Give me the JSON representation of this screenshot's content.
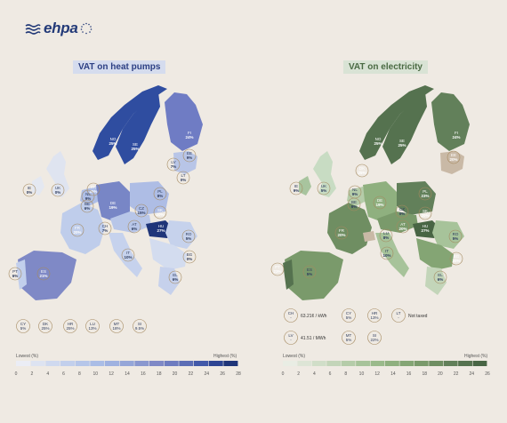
{
  "brand": {
    "name": "ehpa"
  },
  "heat_pumps": {
    "title": "VAT on heat pumps",
    "countries": [
      {
        "code": "NO",
        "value": "25%"
      },
      {
        "code": "SE",
        "value": "25%"
      },
      {
        "code": "FI",
        "value": "24%"
      },
      {
        "code": "EE",
        "value": "9%"
      },
      {
        "code": "LV",
        "value": "7%"
      },
      {
        "code": "LT",
        "value": "0%"
      },
      {
        "code": "DK",
        "value": "25%"
      },
      {
        "code": "IE",
        "value": "0%"
      },
      {
        "code": "UK",
        "value": "0%"
      },
      {
        "code": "NL",
        "value": "9%"
      },
      {
        "code": "BE",
        "value": "6%"
      },
      {
        "code": "DE",
        "value": "19%"
      },
      {
        "code": "PL",
        "value": "8%"
      },
      {
        "code": "CZ",
        "value": "15%"
      },
      {
        "code": "SK",
        "value": "20%"
      },
      {
        "code": "FR",
        "value": "20%"
      },
      {
        "code": "CH",
        "value": "7%"
      },
      {
        "code": "AT",
        "value": "6%"
      },
      {
        "code": "HU",
        "value": "27%"
      },
      {
        "code": "RO",
        "value": "5%"
      },
      {
        "code": "PT",
        "value": "6%"
      },
      {
        "code": "ES",
        "value": "21%"
      },
      {
        "code": "IT",
        "value": "10%"
      },
      {
        "code": "BG",
        "value": "0%"
      },
      {
        "code": "EL",
        "value": "6%"
      }
    ],
    "extras": [
      {
        "code": "CY",
        "value": "5%"
      },
      {
        "code": "DK",
        "value": "25%"
      },
      {
        "code": "HR",
        "value": "25%"
      },
      {
        "code": "LU",
        "value": "13%"
      },
      {
        "code": "MT",
        "value": "18%"
      },
      {
        "code": "SI",
        "value": "9.5%"
      }
    ],
    "legend_low": "Lowest (%)",
    "legend_high": "Highest (%)",
    "scale": [
      "0",
      "2",
      "4",
      "6",
      "8",
      "10",
      "12",
      "14",
      "16",
      "18",
      "20",
      "22",
      "24",
      "26",
      "28"
    ],
    "scale_colors": [
      "#ebedf5",
      "#dde3f1",
      "#cfd9ef",
      "#c2cfec",
      "#b6c6e9",
      "#aabde6",
      "#9fb2e0",
      "#95a6d8",
      "#8a98cf",
      "#7f89c6",
      "#6e7cc0",
      "#5b6db5",
      "#4259a9",
      "#2d4593",
      "#1f3579"
    ]
  },
  "electricity": {
    "title": "VAT on electricity",
    "countries": [
      {
        "code": "NO",
        "value": "25%"
      },
      {
        "code": "SE",
        "value": "25%"
      },
      {
        "code": "FI",
        "value": "24%"
      },
      {
        "code": "EE",
        "value": "20%"
      },
      {
        "code": "DK",
        "value": "25%"
      },
      {
        "code": "IE",
        "value": "9%"
      },
      {
        "code": "UK",
        "value": "5%"
      },
      {
        "code": "NL",
        "value": "9%"
      },
      {
        "code": "BE",
        "value": "6%"
      },
      {
        "code": "DE",
        "value": "19%"
      },
      {
        "code": "PL",
        "value": "23%"
      },
      {
        "code": "CZ",
        "value": "0%"
      },
      {
        "code": "SK",
        "value": "20%"
      },
      {
        "code": "FR",
        "value": "20%"
      },
      {
        "code": "AT",
        "value": "20%"
      },
      {
        "code": "HU",
        "value": "27%"
      },
      {
        "code": "LU",
        "value": "8%"
      },
      {
        "code": "RO",
        "value": "5%"
      },
      {
        "code": "PT",
        "value": "23%"
      },
      {
        "code": "ES",
        "value": "5%"
      },
      {
        "code": "IT",
        "value": "10%"
      },
      {
        "code": "BG",
        "value": "20%"
      },
      {
        "code": "EL",
        "value": "6%"
      }
    ],
    "extras": [
      {
        "code": "CH",
        "value": "63.21¢ / kWh"
      },
      {
        "code": "CY",
        "value": "5%"
      },
      {
        "code": "HR",
        "value": "13%"
      },
      {
        "code": "LT",
        "value": "Not taxed"
      },
      {
        "code": "LV",
        "value": "41.51 / MWh"
      },
      {
        "code": "MT",
        "value": "5%"
      },
      {
        "code": "SI",
        "value": "22%"
      }
    ],
    "legend_low": "Lowest (%)",
    "legend_high": "Highest (%)",
    "scale": [
      "0",
      "2",
      "4",
      "6",
      "8",
      "10",
      "12",
      "14",
      "16",
      "18",
      "20",
      "22",
      "24",
      "26"
    ],
    "scale_colors": [
      "#e9ede4",
      "#dde5d6",
      "#d0dec8",
      "#c3d5b9",
      "#b5cca9",
      "#a7c39a",
      "#9aba8b",
      "#8fb07f",
      "#84a574",
      "#7a9a6b",
      "#6f8e62",
      "#62805a",
      "#55724f",
      "#486544"
    ]
  }
}
